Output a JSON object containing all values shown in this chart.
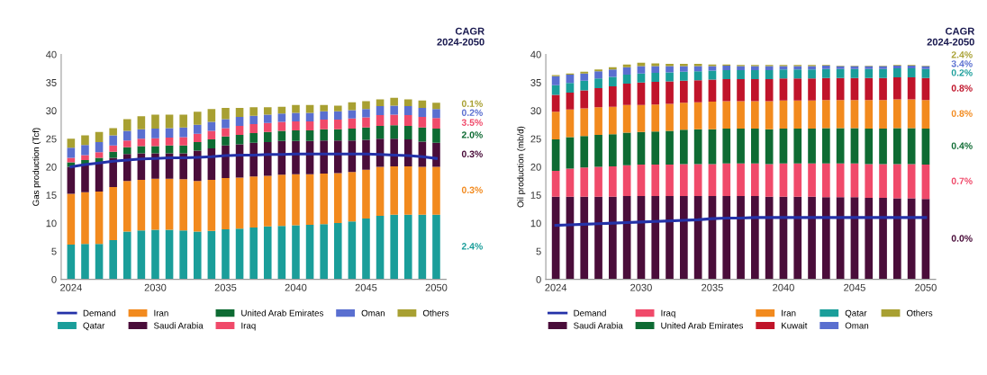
{
  "chart_data": [
    {
      "type": "bar",
      "title": "CAGR\n2024-2050",
      "ylabel": "Gas production (Tcf)",
      "stacked": true,
      "legend": "bottom",
      "grid": false,
      "x": [
        2024,
        2025,
        2026,
        2027,
        2028,
        2029,
        2030,
        2031,
        2032,
        2033,
        2034,
        2035,
        2036,
        2037,
        2038,
        2039,
        2040,
        2041,
        2042,
        2043,
        2044,
        2045,
        2046,
        2047,
        2048,
        2049,
        2050
      ],
      "xlim": [
        2023.3,
        2050.7
      ],
      "xticks": [
        2024,
        2030,
        2035,
        2040,
        2045,
        2050
      ],
      "ylim": [
        0,
        40
      ],
      "yticks": [
        0,
        5,
        10,
        15,
        20,
        25,
        30,
        35,
        40
      ],
      "annotations": [
        "2.4%",
        "0.3%",
        "0.3%",
        "2.0%",
        "3.5%",
        "0.2%",
        "0.1%"
      ],
      "series": [
        {
          "name": "Qatar",
          "color": "#1a9e9a",
          "values": [
            6.2,
            6.3,
            6.3,
            7.0,
            8.5,
            8.7,
            8.8,
            8.8,
            8.7,
            8.5,
            8.6,
            8.9,
            9.0,
            9.2,
            9.4,
            9.5,
            9.6,
            9.7,
            9.8,
            10.0,
            10.3,
            10.8,
            11.3,
            11.5,
            11.5,
            11.5,
            11.5
          ]
        },
        {
          "name": "Iran",
          "color": "#f28a1e",
          "values": [
            9.0,
            9.2,
            9.3,
            9.4,
            9.0,
            9.0,
            9.1,
            9.1,
            9.1,
            9.0,
            9.1,
            9.1,
            9.1,
            9.1,
            9.0,
            9.1,
            9.1,
            9.0,
            9.0,
            8.9,
            8.8,
            8.7,
            8.7,
            8.6,
            8.6,
            8.5,
            8.5
          ]
        },
        {
          "name": "Saudi Arabia",
          "color": "#4a0d3a",
          "values": [
            4.8,
            4.8,
            5.0,
            5.2,
            4.8,
            4.7,
            4.5,
            4.5,
            4.6,
            5.4,
            5.6,
            5.8,
            5.9,
            6.0,
            6.0,
            6.0,
            5.9,
            5.9,
            5.9,
            5.8,
            5.6,
            5.3,
            5.0,
            4.9,
            4.8,
            4.5,
            4.3
          ]
        },
        {
          "name": "United Arab Emirates",
          "color": "#0e6b33",
          "values": [
            0.8,
            0.9,
            1.0,
            1.1,
            1.2,
            1.3,
            1.3,
            1.4,
            1.4,
            1.5,
            1.6,
            1.6,
            1.7,
            1.7,
            1.8,
            1.8,
            1.9,
            1.9,
            2.0,
            2.0,
            2.1,
            2.2,
            2.3,
            2.4,
            2.4,
            2.5,
            2.5
          ]
        },
        {
          "name": "Iraq",
          "color": "#f04a6a",
          "values": [
            0.8,
            0.9,
            1.0,
            1.1,
            1.2,
            1.3,
            1.4,
            1.4,
            1.5,
            1.5,
            1.5,
            1.5,
            1.6,
            1.6,
            1.6,
            1.6,
            1.6,
            1.6,
            1.7,
            1.7,
            1.8,
            1.8,
            1.9,
            1.9,
            1.9,
            1.9,
            1.9
          ]
        },
        {
          "name": "Oman",
          "color": "#5a6fd0",
          "values": [
            1.8,
            1.8,
            1.8,
            1.8,
            1.7,
            1.7,
            1.7,
            1.7,
            1.7,
            1.6,
            1.6,
            1.6,
            1.6,
            1.5,
            1.5,
            1.5,
            1.5,
            1.5,
            1.5,
            1.5,
            1.5,
            1.5,
            1.6,
            1.6,
            1.6,
            1.6,
            1.6
          ]
        },
        {
          "name": "Others",
          "color": "#a8a032",
          "values": [
            1.6,
            1.7,
            1.8,
            1.3,
            2.1,
            2.3,
            2.5,
            2.4,
            2.3,
            2.3,
            2.3,
            2.0,
            1.6,
            1.5,
            1.3,
            1.2,
            1.4,
            1.4,
            1.1,
            1.0,
            1.4,
            1.4,
            1.2,
            1.4,
            1.2,
            1.3,
            1.1
          ]
        },
        {
          "name": "Demand",
          "type": "line",
          "color": "#2432a8",
          "values": [
            20.0,
            20.4,
            20.7,
            21.0,
            21.2,
            21.4,
            21.5,
            21.6,
            21.6,
            21.7,
            21.8,
            22.0,
            22.1,
            22.1,
            22.2,
            22.2,
            22.3,
            22.3,
            22.3,
            22.3,
            22.3,
            22.3,
            22.2,
            22.1,
            22.0,
            21.8,
            21.5
          ]
        }
      ]
    },
    {
      "type": "bar",
      "title": "CAGR\n2024-2050",
      "ylabel": "Oil production (mb/d)",
      "stacked": true,
      "legend": "bottom",
      "grid": false,
      "x": [
        2024,
        2025,
        2026,
        2027,
        2028,
        2029,
        2030,
        2031,
        2032,
        2033,
        2034,
        2035,
        2036,
        2037,
        2038,
        2039,
        2040,
        2041,
        2042,
        2043,
        2044,
        2045,
        2046,
        2047,
        2048,
        2049,
        2050
      ],
      "xlim": [
        2023.3,
        2050.7
      ],
      "xticks": [
        2024,
        2030,
        2035,
        2040,
        2045,
        2050
      ],
      "ylim": [
        0,
        40
      ],
      "yticks": [
        0,
        5,
        10,
        15,
        20,
        25,
        30,
        35,
        40
      ],
      "annotations": [
        "0.0%",
        "0.7%",
        "0.4%",
        "0.8%",
        "0.8%",
        "0.2%",
        "3.4%",
        "2.4%"
      ],
      "series": [
        {
          "name": "Saudi Arabia",
          "color": "#4a0d3a",
          "values": [
            14.7,
            14.7,
            14.7,
            14.7,
            14.7,
            14.8,
            14.8,
            14.8,
            14.8,
            14.8,
            14.8,
            14.8,
            14.8,
            14.8,
            14.8,
            14.7,
            14.7,
            14.7,
            14.7,
            14.6,
            14.6,
            14.6,
            14.5,
            14.5,
            14.4,
            14.4,
            14.3
          ]
        },
        {
          "name": "Iraq",
          "color": "#f04a6a",
          "values": [
            4.6,
            5.0,
            5.2,
            5.3,
            5.4,
            5.5,
            5.6,
            5.6,
            5.6,
            5.7,
            5.7,
            5.7,
            5.8,
            5.8,
            5.8,
            5.8,
            5.9,
            5.9,
            5.9,
            6.0,
            6.0,
            6.0,
            6.0,
            6.0,
            6.1,
            6.1,
            6.1
          ]
        },
        {
          "name": "United Arab Emirates",
          "color": "#0e6b33",
          "values": [
            5.6,
            5.6,
            5.6,
            5.7,
            5.7,
            5.8,
            5.8,
            5.9,
            6.0,
            6.1,
            6.2,
            6.2,
            6.2,
            6.2,
            6.2,
            6.2,
            6.2,
            6.2,
            6.2,
            6.3,
            6.3,
            6.3,
            6.3,
            6.3,
            6.4,
            6.4,
            6.4
          ]
        },
        {
          "name": "Iran",
          "color": "#f28a1e",
          "values": [
            4.9,
            4.9,
            4.9,
            4.9,
            4.9,
            4.9,
            4.8,
            4.8,
            4.8,
            4.8,
            4.8,
            4.9,
            4.9,
            4.9,
            4.9,
            5.0,
            5.0,
            5.0,
            5.0,
            5.0,
            5.0,
            5.0,
            5.1,
            5.1,
            5.1,
            5.1,
            5.1
          ]
        },
        {
          "name": "Kuwait",
          "color": "#c0142a",
          "values": [
            3.0,
            3.0,
            3.2,
            3.4,
            3.6,
            3.8,
            4.0,
            4.0,
            4.0,
            3.9,
            3.9,
            3.9,
            3.9,
            3.9,
            3.9,
            3.9,
            3.9,
            3.9,
            3.9,
            3.9,
            3.9,
            3.9,
            3.9,
            3.9,
            3.9,
            3.9,
            3.9
          ]
        },
        {
          "name": "Qatar",
          "color": "#1a9e9a",
          "values": [
            1.7,
            1.7,
            1.7,
            1.7,
            1.7,
            1.6,
            1.6,
            1.6,
            1.6,
            1.6,
            1.6,
            1.6,
            1.6,
            1.6,
            1.6,
            1.6,
            1.6,
            1.6,
            1.6,
            1.6,
            1.6,
            1.6,
            1.6,
            1.6,
            1.6,
            1.6,
            1.6
          ]
        },
        {
          "name": "Oman",
          "color": "#5a6fd0",
          "values": [
            1.6,
            1.5,
            1.3,
            1.3,
            1.3,
            1.3,
            1.3,
            1.2,
            1.1,
            1.0,
            0.9,
            0.8,
            0.8,
            0.7,
            0.7,
            0.7,
            0.6,
            0.6,
            0.6,
            0.6,
            0.5,
            0.5,
            0.5,
            0.5,
            0.5,
            0.5,
            0.5
          ]
        },
        {
          "name": "Others",
          "color": "#a8a032",
          "values": [
            0.2,
            0.2,
            0.3,
            0.3,
            0.4,
            0.5,
            0.6,
            0.5,
            0.4,
            0.4,
            0.4,
            0.3,
            0.2,
            0.2,
            0.2,
            0.2,
            0.2,
            0.2,
            0.2,
            0.1,
            0.1,
            0.1,
            0.1,
            0.1,
            0.1,
            0.1,
            0.1
          ]
        },
        {
          "name": "Demand",
          "type": "line",
          "color": "#2432a8",
          "values": [
            9.6,
            9.7,
            9.8,
            9.9,
            10.0,
            10.1,
            10.2,
            10.3,
            10.4,
            10.5,
            10.6,
            10.8,
            10.9,
            10.9,
            11.0,
            11.0,
            11.0,
            11.0,
            11.0,
            11.0,
            11.0,
            11.0,
            11.0,
            11.0,
            11.0,
            11.0,
            11.0
          ]
        }
      ]
    }
  ]
}
